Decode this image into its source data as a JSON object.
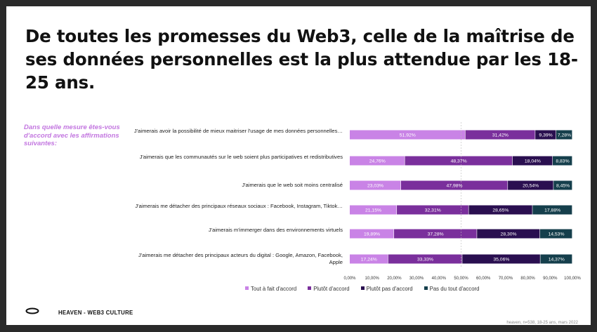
{
  "title": "De toutes les promesses du Web3, celle de la maîtrise de ses données personnelles est la plus attendue par les 18-25 ans.",
  "question": "Dans quelle mesure êtes-vous d'accord avec les affirmations suivantes:",
  "chart_data": {
    "type": "bar",
    "orientation": "horizontal",
    "stacked": true,
    "categories": [
      "J'aimerais avoir la possibilité de mieux maitriser l'usage de mes données personnelles…",
      "J'aimerais que les communautés sur le web soient plus participatives et redistributives",
      "J'aimerais que le web soit moins centralisé",
      "J'aimerais me détacher des principaux réseaux sociaux : Facebook, Instagram, Tiktok…",
      "J'aimerais m'immerger dans des environnements virtuels",
      "J'aimerais me détacher des principaux acteurs du digital : Google, Amazon, Facebook, Apple"
    ],
    "series": [
      {
        "name": "Tout à fait d'accord",
        "color": "#c983e6",
        "values": [
          51.92,
          24.76,
          23.03,
          21.15,
          19.89,
          17.24
        ],
        "labels": [
          "51,92%",
          "24,76%",
          "23,03%",
          "21,15%",
          "19,89%",
          "17,24%"
        ]
      },
      {
        "name": "Plutôt d'accord",
        "color": "#7a2f9c",
        "values": [
          31.42,
          48.37,
          47.98,
          32.31,
          37.28,
          33.33
        ],
        "labels": [
          "31,42%",
          "48,37%",
          "47,98%",
          "32,31%",
          "37,28%",
          "33,33%"
        ]
      },
      {
        "name": "Plutôt pas d'accord",
        "color": "#2a0f50",
        "values": [
          9.39,
          18.04,
          20.54,
          28.65,
          28.3,
          35.06
        ],
        "labels": [
          "9,39%",
          "18,04%",
          "20,54%",
          "28,65%",
          "28,30%",
          "35,06%"
        ]
      },
      {
        "name": "Pas du tout d'accord",
        "color": "#153f4c",
        "values": [
          7.28,
          8.83,
          8.45,
          17.88,
          14.53,
          14.37
        ],
        "labels": [
          "7,28%",
          "8,83%",
          "8,45%",
          "17,88%",
          "14,53%",
          "14,37%"
        ]
      }
    ],
    "xlim": [
      0,
      100
    ],
    "x_ticks": [
      "0,00%",
      "10,00%",
      "20,00%",
      "30,00%",
      "40,00%",
      "50,00%",
      "60,00%",
      "70,00%",
      "80,00%",
      "90,00%",
      "100,00%"
    ],
    "legend_position": "bottom",
    "grid": false
  },
  "footer": {
    "brand": "HEAVEN - WEB3 CULTURE",
    "source": "heaven, n=538, 18-25 ans, mars 2022"
  }
}
